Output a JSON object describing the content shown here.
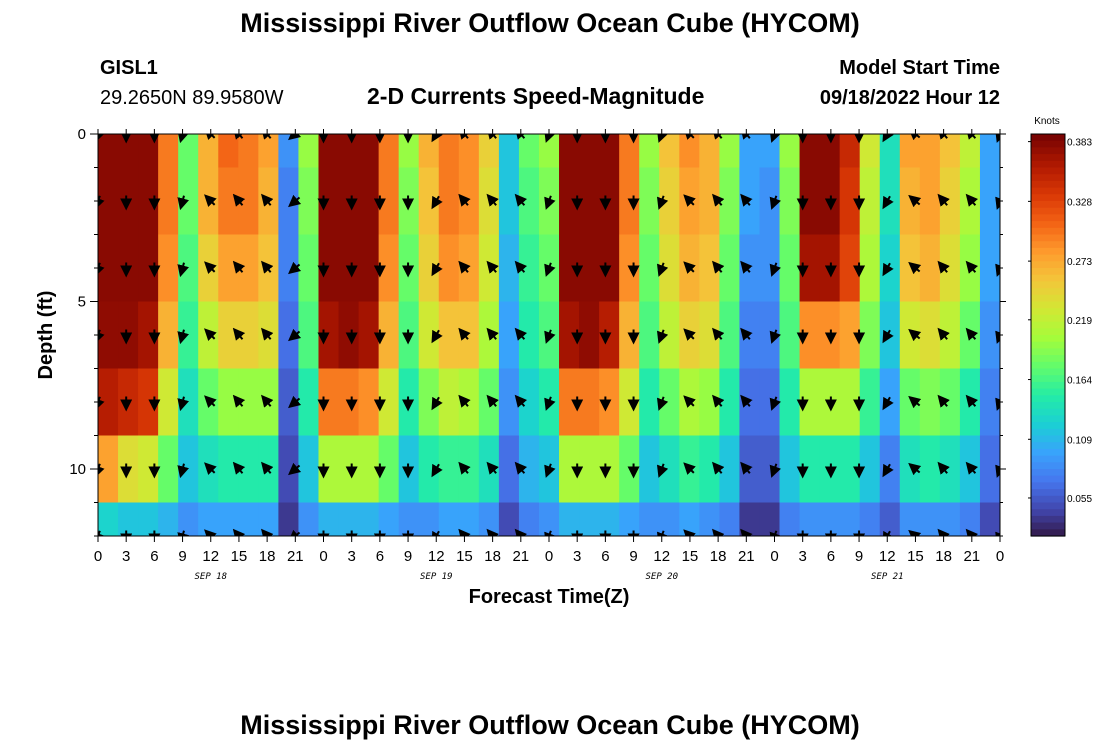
{
  "header": {
    "title": "Mississippi River Outflow Ocean Cube (HYCOM)",
    "station": "GISL1",
    "coords": "29.2650N  89.9580W",
    "subtitle": "2-D Currents Speed-Magnitude",
    "model_label": "Model Start Time",
    "model_time": "09/18/2022 Hour 12",
    "footer_title": "Mississippi River Outflow Ocean Cube (HYCOM)"
  },
  "chart_data": {
    "type": "heatmap",
    "title": "2-D Currents Speed-Magnitude",
    "xlabel": "Forecast Time(Z)",
    "ylabel": "Depth (ft)",
    "x_tick_labels": [
      "0",
      "3",
      "6",
      "9",
      "12",
      "15",
      "18",
      "21",
      "0",
      "3",
      "6",
      "9",
      "12",
      "15",
      "18",
      "21",
      "0",
      "3",
      "6",
      "9",
      "12",
      "15",
      "18",
      "21",
      "0",
      "3",
      "6",
      "9",
      "12",
      "15",
      "18",
      "21",
      "0"
    ],
    "x_hours": [
      0,
      3,
      6,
      9,
      12,
      15,
      18,
      21,
      24,
      27,
      30,
      33,
      36,
      39,
      42,
      45,
      48,
      51,
      54,
      57,
      60,
      63,
      66,
      69,
      72,
      75,
      78,
      81,
      84,
      87,
      90,
      93,
      96
    ],
    "date_labels": [
      {
        "label": "SEP 18",
        "hour": 12
      },
      {
        "label": "SEP 19",
        "hour": 36
      },
      {
        "label": "SEP 20",
        "hour": 60
      },
      {
        "label": "SEP 21",
        "hour": 84
      }
    ],
    "y_ticks": [
      0,
      5,
      10
    ],
    "ylim": [
      0,
      12
    ],
    "xlim": [
      0,
      96
    ],
    "colorbar": {
      "title": "Knots",
      "labels": [
        "0.383",
        "0.328",
        "0.273",
        "0.219",
        "0.164",
        "0.109",
        "0.055"
      ],
      "values": [
        0.383,
        0.328,
        0.273,
        0.219,
        0.164,
        0.109,
        0.055
      ],
      "range": [
        0.02,
        0.39
      ]
    },
    "colormap": [
      "#30123b",
      "#4145ab",
      "#4675ed",
      "#39a2fc",
      "#1bcfd4",
      "#24eca6",
      "#61fc6c",
      "#a4fc3b",
      "#d1e834",
      "#f3c63a",
      "#fe9b2d",
      "#f36315",
      "#d93806",
      "#b11901",
      "#7a0402"
    ],
    "depth_rows": [
      0,
      2,
      4,
      6,
      8,
      10,
      12
    ],
    "speed_rows": [
      [
        0.383,
        0.383,
        0.383,
        0.3,
        0.18,
        0.27,
        0.31,
        0.3,
        0.28,
        0.09,
        0.2,
        0.383,
        0.383,
        0.383,
        0.3,
        0.2,
        0.27,
        0.3,
        0.29,
        0.25,
        0.12,
        0.18,
        0.2,
        0.383,
        0.383,
        0.383,
        0.3,
        0.2,
        0.26,
        0.29,
        0.27,
        0.2,
        0.1,
        0.1,
        0.2,
        0.383,
        0.383,
        0.35,
        0.23,
        0.14,
        0.28,
        0.28,
        0.26,
        0.22,
        0.1
      ],
      [
        0.383,
        0.383,
        0.383,
        0.3,
        0.18,
        0.27,
        0.3,
        0.3,
        0.27,
        0.08,
        0.19,
        0.383,
        0.383,
        0.383,
        0.3,
        0.19,
        0.26,
        0.3,
        0.29,
        0.24,
        0.12,
        0.17,
        0.19,
        0.383,
        0.383,
        0.383,
        0.3,
        0.19,
        0.25,
        0.28,
        0.27,
        0.19,
        0.1,
        0.09,
        0.19,
        0.383,
        0.383,
        0.34,
        0.22,
        0.14,
        0.27,
        0.28,
        0.25,
        0.21,
        0.1
      ],
      [
        0.383,
        0.383,
        0.383,
        0.29,
        0.17,
        0.25,
        0.28,
        0.28,
        0.26,
        0.08,
        0.18,
        0.383,
        0.383,
        0.383,
        0.29,
        0.18,
        0.25,
        0.29,
        0.28,
        0.23,
        0.11,
        0.16,
        0.18,
        0.383,
        0.383,
        0.383,
        0.29,
        0.18,
        0.24,
        0.27,
        0.26,
        0.18,
        0.09,
        0.09,
        0.18,
        0.37,
        0.37,
        0.33,
        0.21,
        0.13,
        0.26,
        0.27,
        0.24,
        0.2,
        0.1
      ],
      [
        0.38,
        0.38,
        0.37,
        0.27,
        0.16,
        0.22,
        0.25,
        0.25,
        0.24,
        0.07,
        0.17,
        0.37,
        0.38,
        0.37,
        0.27,
        0.17,
        0.23,
        0.26,
        0.26,
        0.21,
        0.1,
        0.15,
        0.17,
        0.37,
        0.38,
        0.36,
        0.27,
        0.17,
        0.22,
        0.25,
        0.24,
        0.17,
        0.08,
        0.08,
        0.17,
        0.29,
        0.29,
        0.28,
        0.19,
        0.12,
        0.23,
        0.24,
        0.22,
        0.18,
        0.09
      ],
      [
        0.36,
        0.35,
        0.34,
        0.23,
        0.14,
        0.18,
        0.2,
        0.2,
        0.2,
        0.06,
        0.15,
        0.3,
        0.3,
        0.29,
        0.23,
        0.15,
        0.19,
        0.22,
        0.21,
        0.18,
        0.09,
        0.13,
        0.15,
        0.3,
        0.3,
        0.29,
        0.23,
        0.15,
        0.18,
        0.21,
        0.2,
        0.15,
        0.07,
        0.07,
        0.15,
        0.21,
        0.21,
        0.21,
        0.16,
        0.1,
        0.18,
        0.19,
        0.18,
        0.15,
        0.08
      ],
      [
        0.28,
        0.24,
        0.23,
        0.18,
        0.12,
        0.14,
        0.15,
        0.15,
        0.15,
        0.05,
        0.12,
        0.21,
        0.21,
        0.21,
        0.18,
        0.12,
        0.15,
        0.16,
        0.16,
        0.14,
        0.07,
        0.11,
        0.12,
        0.21,
        0.21,
        0.21,
        0.18,
        0.12,
        0.14,
        0.16,
        0.15,
        0.12,
        0.06,
        0.06,
        0.12,
        0.15,
        0.15,
        0.15,
        0.12,
        0.08,
        0.14,
        0.15,
        0.14,
        0.12,
        0.07
      ],
      [
        0.13,
        0.12,
        0.12,
        0.11,
        0.09,
        0.1,
        0.1,
        0.1,
        0.1,
        0.04,
        0.09,
        0.11,
        0.11,
        0.11,
        0.1,
        0.09,
        0.09,
        0.1,
        0.1,
        0.09,
        0.05,
        0.08,
        0.09,
        0.11,
        0.11,
        0.11,
        0.1,
        0.09,
        0.09,
        0.1,
        0.09,
        0.08,
        0.04,
        0.04,
        0.08,
        0.09,
        0.09,
        0.09,
        0.08,
        0.06,
        0.09,
        0.09,
        0.09,
        0.08,
        0.05
      ]
    ],
    "arrow_depths": [
      0,
      2,
      4,
      6,
      8,
      10,
      12
    ],
    "arrow_hours": [
      0,
      3,
      6,
      9,
      12,
      15,
      18,
      21,
      24,
      27,
      30,
      33,
      36,
      39,
      42,
      45,
      48,
      51,
      54,
      57,
      60,
      63,
      66,
      69,
      72,
      75,
      78,
      81,
      84,
      87,
      90,
      93,
      96
    ],
    "arrow_direction_deg": [
      200,
      180,
      180,
      195,
      315,
      320,
      320,
      230,
      180,
      180,
      180,
      180,
      210,
      320,
      320,
      320,
      200,
      180,
      180,
      180,
      200,
      315,
      320,
      320,
      200,
      180,
      180,
      180,
      210,
      310,
      320,
      320,
      200
    ]
  }
}
